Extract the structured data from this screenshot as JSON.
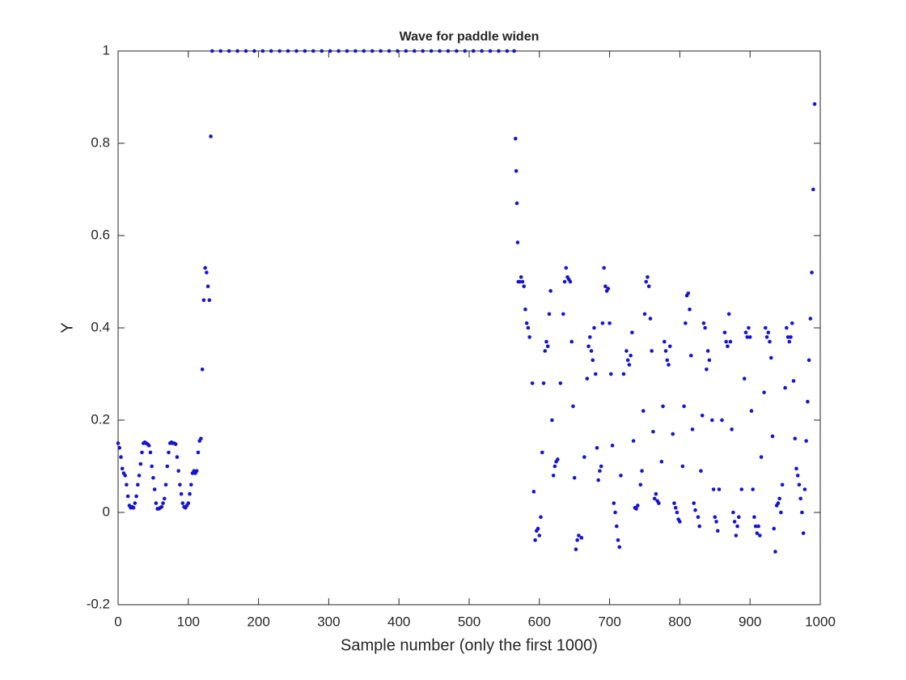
{
  "chart_data": {
    "type": "scatter",
    "title": "Wave for paddle widen",
    "x_label": "Sample number (only the first 1000)",
    "y_label": "Y",
    "color": "#1414d4",
    "x": [
      0,
      2,
      4,
      6,
      8,
      10,
      12,
      14,
      16,
      18,
      20,
      22,
      24,
      26,
      28,
      30,
      32,
      34,
      36,
      38,
      40,
      42,
      44,
      46,
      48,
      50,
      52,
      54,
      56,
      58,
      60,
      62,
      64,
      66,
      68,
      70,
      72,
      74,
      76,
      78,
      80,
      82,
      84,
      86,
      88,
      90,
      92,
      94,
      96,
      98,
      100,
      102,
      104,
      106,
      108,
      110,
      112,
      114,
      116,
      118,
      120,
      122,
      124,
      126,
      128,
      130,
      132,
      134,
      146,
      158,
      170,
      182,
      194,
      206,
      218,
      230,
      242,
      254,
      266,
      278,
      290,
      302,
      314,
      326,
      338,
      350,
      362,
      374,
      386,
      398,
      410,
      422,
      434,
      446,
      458,
      470,
      482,
      494,
      506,
      518,
      530,
      542,
      554,
      564,
      566,
      567,
      568,
      569,
      570,
      572,
      574,
      576,
      578,
      580,
      582,
      584,
      586,
      590,
      592,
      594,
      596,
      598,
      600,
      602,
      604,
      606,
      608,
      610,
      612,
      614,
      616,
      618,
      620,
      622,
      624,
      626,
      630,
      634,
      636,
      638,
      640,
      642,
      644,
      646,
      648,
      650,
      652,
      654,
      656,
      660,
      664,
      668,
      670,
      672,
      674,
      676,
      678,
      680,
      682,
      684,
      686,
      688,
      690,
      692,
      694,
      696,
      698,
      700,
      702,
      704,
      706,
      708,
      710,
      712,
      714,
      716,
      720,
      724,
      726,
      728,
      730,
      732,
      734,
      736,
      738,
      740,
      744,
      746,
      748,
      750,
      752,
      754,
      756,
      758,
      760,
      762,
      764,
      766,
      768,
      770,
      774,
      776,
      778,
      780,
      782,
      784,
      786,
      790,
      792,
      794,
      796,
      798,
      800,
      804,
      806,
      808,
      810,
      812,
      814,
      816,
      818,
      820,
      822,
      826,
      828,
      830,
      832,
      834,
      836,
      838,
      840,
      842,
      846,
      848,
      850,
      852,
      854,
      856,
      860,
      864,
      866,
      868,
      870,
      872,
      874,
      876,
      878,
      880,
      882,
      884,
      888,
      892,
      894,
      896,
      898,
      900,
      902,
      904,
      906,
      908,
      910,
      912,
      914,
      916,
      920,
      922,
      924,
      926,
      928,
      930,
      932,
      934,
      936,
      938,
      940,
      942,
      944,
      946,
      950,
      952,
      954,
      956,
      958,
      960,
      962,
      964,
      966,
      968,
      970,
      972,
      974,
      976,
      978,
      980,
      982,
      984,
      986,
      988,
      990,
      992
    ],
    "values": [
      0.15,
      0.14,
      0.12,
      0.095,
      0.085,
      0.08,
      0.06,
      0.035,
      0.015,
      0.01,
      0.012,
      0.01,
      0.02,
      0.035,
      0.06,
      0.08,
      0.105,
      0.13,
      0.15,
      0.152,
      0.15,
      0.148,
      0.145,
      0.13,
      0.1,
      0.075,
      0.05,
      0.02,
      0.008,
      0.008,
      0.01,
      0.012,
      0.02,
      0.03,
      0.06,
      0.1,
      0.13,
      0.15,
      0.152,
      0.15,
      0.15,
      0.148,
      0.12,
      0.09,
      0.06,
      0.04,
      0.02,
      0.012,
      0.01,
      0.015,
      0.02,
      0.04,
      0.06,
      0.085,
      0.09,
      0.085,
      0.09,
      0.13,
      0.155,
      0.16,
      0.31,
      0.46,
      0.53,
      0.52,
      0.49,
      0.46,
      0.815,
      1,
      1,
      1,
      1,
      1,
      1,
      1,
      1,
      1,
      1,
      1,
      1,
      1,
      1,
      1,
      1,
      1,
      1,
      1,
      1,
      1,
      1,
      1,
      1,
      1,
      1,
      1,
      1,
      1,
      1,
      1,
      1,
      1,
      1,
      1,
      1,
      1,
      0.81,
      0.74,
      0.67,
      0.585,
      0.5,
      0.5,
      0.51,
      0.5,
      0.49,
      0.44,
      0.41,
      0.4,
      0.38,
      0.28,
      0.045,
      -0.06,
      -0.04,
      -0.035,
      -0.05,
      -0.01,
      0.13,
      0.28,
      0.35,
      0.37,
      0.36,
      0.43,
      0.48,
      0.2,
      0.08,
      0.1,
      0.11,
      0.115,
      0.28,
      0.43,
      0.5,
      0.53,
      0.51,
      0.505,
      0.5,
      0.37,
      0.23,
      0.075,
      -0.08,
      -0.06,
      -0.05,
      -0.055,
      0.12,
      0.29,
      0.36,
      0.38,
      0.35,
      0.33,
      0.4,
      0.3,
      0.14,
      0.07,
      0.09,
      0.1,
      0.41,
      0.53,
      0.49,
      0.48,
      0.485,
      0.41,
      0.3,
      0.145,
      0.02,
      0.0,
      -0.03,
      -0.06,
      -0.075,
      0.08,
      0.3,
      0.35,
      0.33,
      0.32,
      0.34,
      0.39,
      0.155,
      0.01,
      0.008,
      0.015,
      0.06,
      0.09,
      0.22,
      0.43,
      0.5,
      0.51,
      0.49,
      0.42,
      0.35,
      0.175,
      0.03,
      0.04,
      0.025,
      0.02,
      0.11,
      0.23,
      0.37,
      0.35,
      0.33,
      0.32,
      0.36,
      0.17,
      0.02,
      0.01,
      0.0,
      -0.015,
      -0.02,
      0.1,
      0.23,
      0.41,
      0.47,
      0.475,
      0.44,
      0.34,
      0.18,
      0.02,
      0.005,
      -0.01,
      -0.03,
      0.09,
      0.21,
      0.41,
      0.4,
      0.31,
      0.35,
      0.33,
      0.2,
      0.05,
      -0.01,
      -0.02,
      -0.04,
      0.05,
      0.2,
      0.39,
      0.37,
      0.36,
      0.43,
      0.37,
      0.18,
      0.0,
      -0.02,
      -0.05,
      -0.03,
      -0.01,
      0.05,
      0.29,
      0.39,
      0.38,
      0.4,
      0.38,
      0.22,
      0.05,
      -0.01,
      -0.03,
      -0.045,
      -0.03,
      -0.05,
      0.12,
      0.26,
      0.4,
      0.38,
      0.39,
      0.37,
      0.335,
      0.165,
      -0.035,
      -0.085,
      0.015,
      0.02,
      0.03,
      0.0,
      0.06,
      0.27,
      0.4,
      0.38,
      0.37,
      0.38,
      0.41,
      0.285,
      0.16,
      0.095,
      0.08,
      0.06,
      0.03,
      0.0,
      -0.045,
      0.05,
      0.155,
      0.24,
      0.33,
      0.42,
      0.52,
      0.7,
      0.885
    ],
    "xlim": [
      0,
      1000
    ],
    "ylim": [
      -0.2,
      1
    ],
    "xticks": [
      0,
      100,
      200,
      300,
      400,
      500,
      600,
      700,
      800,
      900,
      1000
    ],
    "yticks": [
      -0.2,
      0,
      0.2,
      0.4,
      0.6,
      0.8,
      1
    ],
    "grid": false
  }
}
